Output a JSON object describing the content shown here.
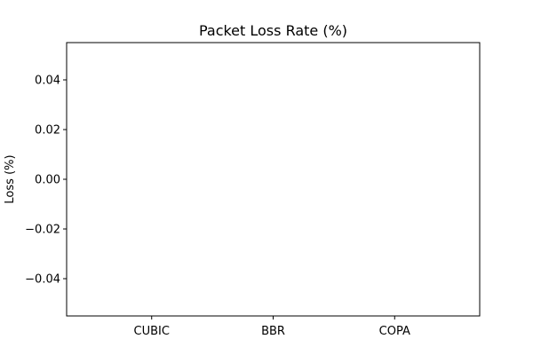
{
  "chart_data": {
    "type": "bar",
    "title": "Packet Loss Rate (%)",
    "xlabel": "",
    "ylabel": "Loss (%)",
    "categories": [
      "CUBIC",
      "BBR",
      "COPA"
    ],
    "values": [
      0,
      0,
      0
    ],
    "ylim": [
      -0.055,
      0.055
    ],
    "yticks": [
      -0.04,
      -0.02,
      0.0,
      0.02,
      0.04
    ],
    "ytick_labels": [
      "−0.04",
      "−0.02",
      "0.00",
      "0.02",
      "0.04"
    ],
    "grid": false,
    "legend": "none",
    "bar_color": "#1f77b4"
  }
}
